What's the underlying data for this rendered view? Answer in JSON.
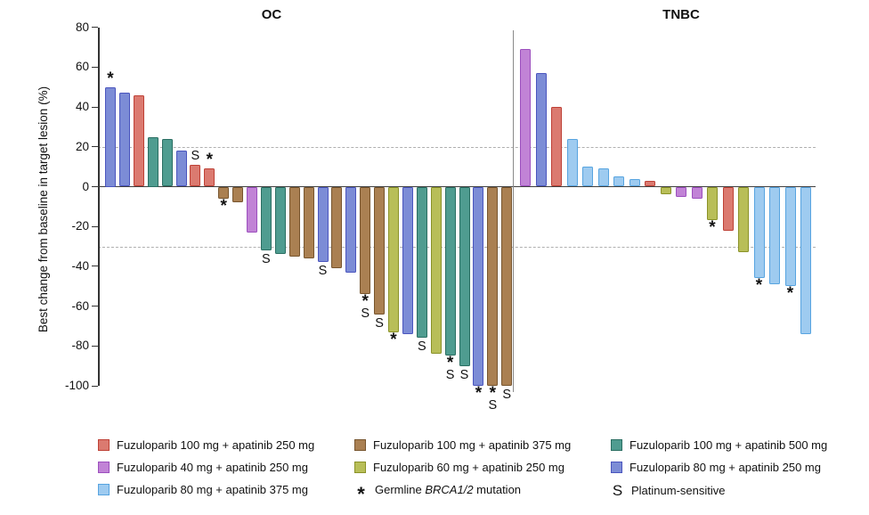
{
  "chart_data": {
    "type": "bar",
    "variant": "waterfall",
    "ylabel": "Best change from baseline in target lesion (%)",
    "ylim": [
      -100,
      80
    ],
    "yticks": [
      80,
      60,
      40,
      20,
      0,
      -20,
      -40,
      -60,
      -80,
      -100
    ],
    "reference_lines": [
      20,
      -30
    ],
    "grid": "off",
    "legend_position": "bottom",
    "annotation_meanings": {
      "*": "Germline BRCA1/2 mutation",
      "S": "Platinum-sensitive"
    },
    "series": {
      "red": {
        "label": "Fuzuloparib 100 mg + apatinib 250 mg",
        "fill": "#DB7A70",
        "stroke": "#BE4136"
      },
      "brown": {
        "label": "Fuzuloparib 100 mg + apatinib 375 mg",
        "fill": "#AA8052",
        "stroke": "#77552E"
      },
      "teal": {
        "label": "Fuzuloparib 100 mg + apatinib 500 mg",
        "fill": "#4F9C90",
        "stroke": "#2A6E62"
      },
      "orchid": {
        "label": "Fuzuloparib 40 mg + apatinib 250 mg",
        "fill": "#C183D6",
        "stroke": "#9C4FBE"
      },
      "olive": {
        "label": "Fuzuloparib 60 mg + apatinib 250 mg",
        "fill": "#B8BE58",
        "stroke": "#8A9228"
      },
      "slate": {
        "label": "Fuzuloparib 80 mg + apatinib 250 mg",
        "fill": "#7C8CD6",
        "stroke": "#4A55BE"
      },
      "lightblue": {
        "label": "Fuzuloparib 80 mg + apatinib 375 mg",
        "fill": "#9ECBF0",
        "stroke": "#57A4E0"
      }
    },
    "groups": [
      {
        "name": "OC",
        "bars": [
          {
            "series": "slate",
            "value": 50,
            "ann": "*"
          },
          {
            "series": "slate",
            "value": 47,
            "ann": ""
          },
          {
            "series": "red",
            "value": 46,
            "ann": ""
          },
          {
            "series": "teal",
            "value": 25,
            "ann": ""
          },
          {
            "series": "teal",
            "value": 24,
            "ann": ""
          },
          {
            "series": "slate",
            "value": 18,
            "ann": ""
          },
          {
            "series": "red",
            "value": 11,
            "ann": "S"
          },
          {
            "series": "red",
            "value": 9,
            "ann": "*"
          },
          {
            "series": "brown",
            "value": -6,
            "ann": "*"
          },
          {
            "series": "brown",
            "value": -8,
            "ann": ""
          },
          {
            "series": "orchid",
            "value": -23,
            "ann": ""
          },
          {
            "series": "teal",
            "value": -32,
            "ann": "S"
          },
          {
            "series": "teal",
            "value": -34,
            "ann": ""
          },
          {
            "series": "brown",
            "value": -35,
            "ann": ""
          },
          {
            "series": "brown",
            "value": -36,
            "ann": ""
          },
          {
            "series": "slate",
            "value": -38,
            "ann": "S"
          },
          {
            "series": "brown",
            "value": -41,
            "ann": ""
          },
          {
            "series": "slate",
            "value": -43,
            "ann": ""
          },
          {
            "series": "brown",
            "value": -54,
            "ann": "*S"
          },
          {
            "series": "brown",
            "value": -64,
            "ann": "S"
          },
          {
            "series": "olive",
            "value": -73,
            "ann": "*"
          },
          {
            "series": "slate",
            "value": -74,
            "ann": ""
          },
          {
            "series": "teal",
            "value": -76,
            "ann": "S"
          },
          {
            "series": "olive",
            "value": -84,
            "ann": ""
          },
          {
            "series": "teal",
            "value": -85,
            "ann": "*S"
          },
          {
            "series": "teal",
            "value": -90,
            "ann": "S"
          },
          {
            "series": "slate",
            "value": -100,
            "ann": "*"
          },
          {
            "series": "brown",
            "value": -100,
            "ann": "*S"
          },
          {
            "series": "brown",
            "value": -100,
            "ann": "S"
          }
        ]
      },
      {
        "name": "TNBC",
        "bars": [
          {
            "series": "orchid",
            "value": 69,
            "ann": ""
          },
          {
            "series": "slate",
            "value": 57,
            "ann": ""
          },
          {
            "series": "red",
            "value": 40,
            "ann": ""
          },
          {
            "series": "lightblue",
            "value": 24,
            "ann": ""
          },
          {
            "series": "lightblue",
            "value": 10,
            "ann": ""
          },
          {
            "series": "lightblue",
            "value": 9,
            "ann": ""
          },
          {
            "series": "lightblue",
            "value": 5,
            "ann": ""
          },
          {
            "series": "lightblue",
            "value": 4,
            "ann": ""
          },
          {
            "series": "red",
            "value": 3,
            "ann": ""
          },
          {
            "series": "olive",
            "value": -4,
            "ann": ""
          },
          {
            "series": "orchid",
            "value": -5,
            "ann": ""
          },
          {
            "series": "orchid",
            "value": -6,
            "ann": ""
          },
          {
            "series": "olive",
            "value": -17,
            "ann": "*"
          },
          {
            "series": "red",
            "value": -22,
            "ann": ""
          },
          {
            "series": "olive",
            "value": -33,
            "ann": ""
          },
          {
            "series": "lightblue",
            "value": -46,
            "ann": "*"
          },
          {
            "series": "lightblue",
            "value": -49,
            "ann": ""
          },
          {
            "series": "lightblue",
            "value": -50,
            "ann": "*"
          },
          {
            "series": "lightblue",
            "value": -74,
            "ann": ""
          }
        ]
      }
    ]
  },
  "legend": {
    "rows": [
      [
        {
          "series": "red"
        },
        {
          "series": "brown"
        },
        {
          "series": "teal"
        }
      ],
      [
        {
          "series": "orchid"
        },
        {
          "series": "olive"
        },
        {
          "series": "slate"
        }
      ],
      [
        {
          "series": "lightblue"
        },
        {
          "symbol": "*",
          "label_parts": [
            {
              "t": "Germline "
            },
            {
              "t": "BRCA1/2",
              "i": true
            },
            {
              "t": " mutation"
            }
          ]
        },
        {
          "symbol": "S",
          "label": "Platinum-sensitive"
        }
      ]
    ]
  }
}
